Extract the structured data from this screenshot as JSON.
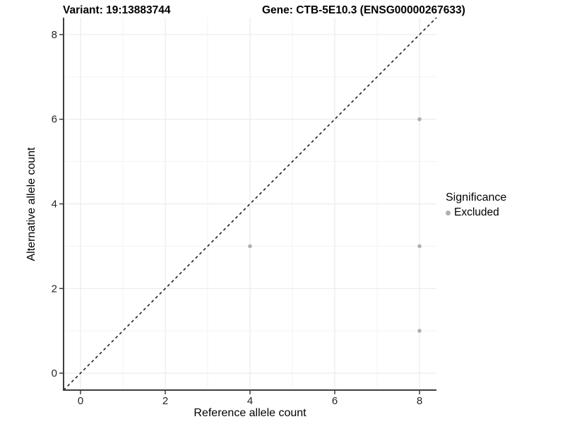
{
  "titles": {
    "variant": "Variant: 19:13883744",
    "gene": "Gene: CTB-5E10.3 (ENSG00000267633)"
  },
  "chart_data": {
    "type": "scatter",
    "xlabel": "Reference allele count",
    "ylabel": "Alternative allele count",
    "xlim": [
      -0.4,
      8.4
    ],
    "ylim": [
      -0.4,
      8.4
    ],
    "xticks": [
      0,
      2,
      4,
      6,
      8
    ],
    "yticks": [
      0,
      2,
      4,
      6,
      8
    ],
    "minor_xticks": [
      1,
      3,
      5,
      7
    ],
    "minor_yticks": [
      1,
      3,
      5,
      7
    ],
    "grid": true,
    "identity_line": {
      "type": "dashed",
      "slope": 1,
      "intercept": 0,
      "color": "#111111"
    },
    "series": [
      {
        "name": "Excluded",
        "color": "#b0b0b0",
        "points": [
          [
            4,
            3
          ],
          [
            8,
            6
          ],
          [
            8,
            3
          ],
          [
            8,
            1
          ]
        ]
      }
    ],
    "legend": {
      "title": "Significance",
      "position": "right",
      "items": [
        {
          "label": "Excluded",
          "color": "#b0b0b0"
        }
      ]
    },
    "colors": {
      "background": "#ffffff",
      "major_grid": "#ebebeb",
      "minor_grid": "#f3f3f3",
      "axis_line": "#3d3d3d",
      "tick_mark": "#3d3d3d",
      "tick_label": "#262626",
      "point": "#b0b0b0",
      "identity_line": "#111111"
    }
  }
}
